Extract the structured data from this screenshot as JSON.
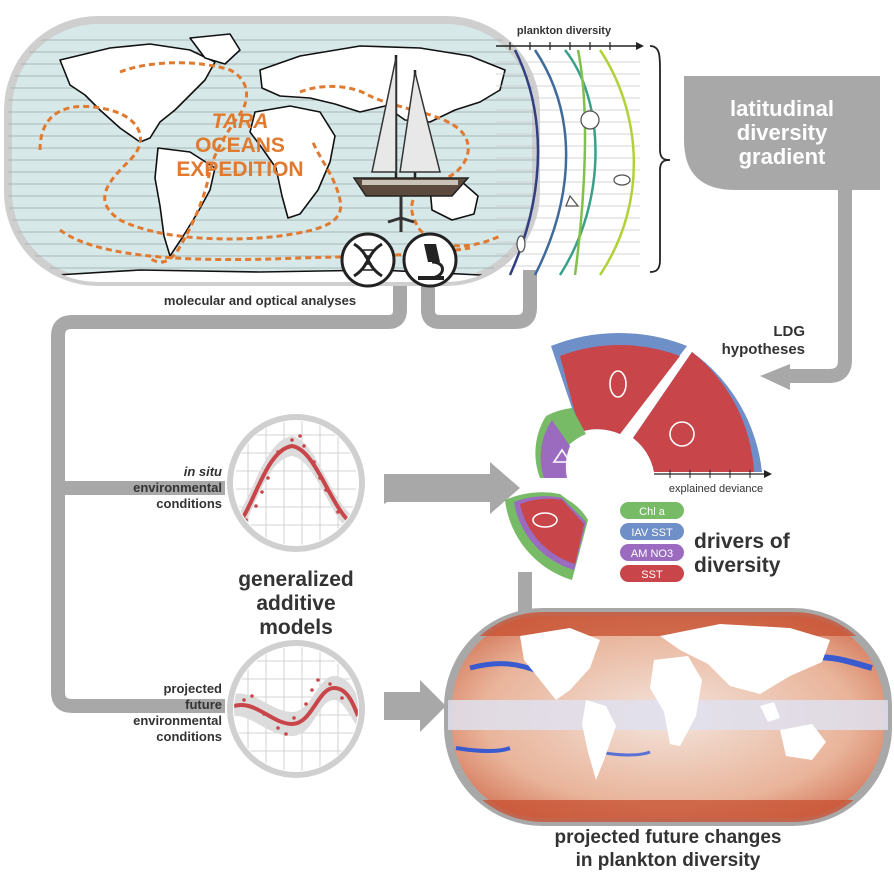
{
  "expedition": {
    "line1": "TARA",
    "line2": "OCEANS",
    "line3": "EXPEDITION"
  },
  "labels": {
    "plankton_diversity": "plankton diversity",
    "molecular_optical": "molecular and optical analyses",
    "ldg_title": [
      "latitudinal",
      "diversity",
      "gradient"
    ],
    "ldg_hypotheses": [
      "LDG",
      "hypotheses"
    ],
    "in_situ": [
      "in situ",
      "environmental",
      "conditions"
    ],
    "projected_env": [
      "projected",
      "future",
      "environmental",
      "conditions"
    ],
    "gam": [
      "generalized",
      "additive",
      "models"
    ],
    "drivers": [
      "drivers of",
      "diversity"
    ],
    "explained_deviance": "explained deviance",
    "projected_changes": [
      "projected future changes",
      "in plankton diversity"
    ]
  },
  "legend": [
    {
      "label": "Chl a",
      "color": "#77bb66"
    },
    {
      "label": "IAV SST",
      "color": "#6f8fc8"
    },
    {
      "label": "AM NO3",
      "color": "#9b6bc0"
    },
    {
      "label": "SST",
      "color": "#c8454a"
    }
  ],
  "colors": {
    "arrow_gray": "#a8a8a8",
    "expedition_orange": "#e07a30",
    "sst_red": "#c8454a",
    "ocean": "#d7e8e8"
  },
  "icons": [
    "dna-icon",
    "microscope-icon",
    "sailboat-icon",
    "plankton-icon"
  ]
}
